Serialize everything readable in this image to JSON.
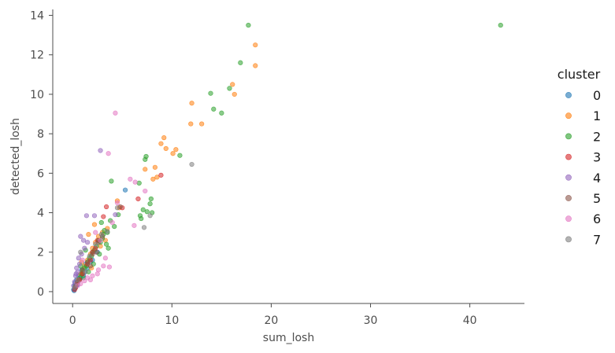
{
  "chart_data": {
    "type": "scatter",
    "xlabel": "sum_losh",
    "ylabel": "detected_losh",
    "xlim": [
      -2,
      45.5
    ],
    "ylim": [
      -0.6,
      14.3
    ],
    "xticks": [
      0,
      10,
      20,
      30,
      40
    ],
    "yticks": [
      0,
      2,
      4,
      6,
      8,
      10,
      12,
      14
    ],
    "grid": false,
    "legend": {
      "title": "cluster",
      "placement": "right"
    },
    "series": [
      {
        "name": "0",
        "color": "#1f77b4",
        "points": [
          [
            0.1,
            0.1
          ],
          [
            0.2,
            0.15
          ],
          [
            0.3,
            0.3
          ],
          [
            0.4,
            0.35
          ],
          [
            0.5,
            0.5
          ],
          [
            0.6,
            0.55
          ],
          [
            0.8,
            0.7
          ],
          [
            1.0,
            0.9
          ],
          [
            1.2,
            1.0
          ],
          [
            0.3,
            0.2
          ],
          [
            0.7,
            0.6
          ],
          [
            0.9,
            1.1
          ],
          [
            1.5,
            1.2
          ],
          [
            2.0,
            1.6
          ],
          [
            0.2,
            0.3
          ],
          [
            0.5,
            0.35
          ],
          [
            1.1,
            0.8
          ],
          [
            1.8,
            1.5
          ],
          [
            0.4,
            0.6
          ],
          [
            5.3,
            5.15
          ],
          [
            0.15,
            0.05
          ],
          [
            0.6,
            0.8
          ],
          [
            1.3,
            1.4
          ],
          [
            2.5,
            2.0
          ],
          [
            0.25,
            0.45
          ]
        ]
      },
      {
        "name": "1",
        "color": "#ff7f0e",
        "points": [
          [
            18.4,
            12.5
          ],
          [
            18.4,
            11.45
          ],
          [
            16.1,
            10.5
          ],
          [
            16.3,
            10.0
          ],
          [
            12.0,
            9.55
          ],
          [
            11.9,
            8.5
          ],
          [
            13.0,
            8.5
          ],
          [
            9.2,
            7.8
          ],
          [
            8.9,
            7.5
          ],
          [
            9.4,
            7.25
          ],
          [
            10.4,
            7.2
          ],
          [
            10.1,
            7.0
          ],
          [
            7.3,
            6.2
          ],
          [
            8.3,
            6.3
          ],
          [
            8.1,
            5.7
          ],
          [
            8.5,
            5.8
          ],
          [
            4.5,
            4.6
          ],
          [
            4.7,
            4.25
          ],
          [
            3.5,
            3.2
          ],
          [
            3.0,
            3.0
          ],
          [
            2.6,
            2.8
          ],
          [
            2.3,
            2.5
          ],
          [
            2.0,
            2.2
          ],
          [
            1.8,
            1.9
          ],
          [
            1.5,
            1.6
          ],
          [
            1.2,
            1.3
          ],
          [
            1.0,
            1.0
          ],
          [
            0.8,
            0.9
          ],
          [
            0.6,
            0.6
          ],
          [
            0.4,
            0.4
          ],
          [
            2.8,
            2.3
          ],
          [
            3.3,
            2.6
          ],
          [
            1.6,
            2.9
          ],
          [
            2.2,
            3.4
          ],
          [
            0.9,
            1.5
          ],
          [
            1.9,
            1.2
          ]
        ]
      },
      {
        "name": "2",
        "color": "#2ca02c",
        "points": [
          [
            43.1,
            13.5
          ],
          [
            17.7,
            13.5
          ],
          [
            16.9,
            11.6
          ],
          [
            13.9,
            10.05
          ],
          [
            14.2,
            9.25
          ],
          [
            15.0,
            9.05
          ],
          [
            15.8,
            10.3
          ],
          [
            10.8,
            6.9
          ],
          [
            7.3,
            6.7
          ],
          [
            7.4,
            6.85
          ],
          [
            3.9,
            5.6
          ],
          [
            7.9,
            4.7
          ],
          [
            7.8,
            4.45
          ],
          [
            7.1,
            4.15
          ],
          [
            7.5,
            4.05
          ],
          [
            8.0,
            4.0
          ],
          [
            6.8,
            3.85
          ],
          [
            6.9,
            3.7
          ],
          [
            4.6,
            3.9
          ],
          [
            3.8,
            3.6
          ],
          [
            3.5,
            3.0
          ],
          [
            3.2,
            3.1
          ],
          [
            3.0,
            2.7
          ],
          [
            2.8,
            2.5
          ],
          [
            2.6,
            2.6
          ],
          [
            2.4,
            2.3
          ],
          [
            2.2,
            2.1
          ],
          [
            2.0,
            2.0
          ],
          [
            1.9,
            1.8
          ],
          [
            1.7,
            1.7
          ],
          [
            1.5,
            1.5
          ],
          [
            1.4,
            1.3
          ],
          [
            1.2,
            1.2
          ],
          [
            1.0,
            1.1
          ],
          [
            0.9,
            0.9
          ],
          [
            0.7,
            0.7
          ],
          [
            0.5,
            0.5
          ],
          [
            0.3,
            0.3
          ],
          [
            3.6,
            2.2
          ],
          [
            3.1,
            2.9
          ],
          [
            2.7,
            1.9
          ],
          [
            1.6,
            1.0
          ],
          [
            1.1,
            0.7
          ],
          [
            0.8,
            1.3
          ],
          [
            2.9,
            3.5
          ],
          [
            4.2,
            3.3
          ],
          [
            6.7,
            5.5
          ],
          [
            3.4,
            2.4
          ],
          [
            2.1,
            1.4
          ],
          [
            1.3,
            2.1
          ]
        ]
      },
      {
        "name": "3",
        "color": "#d62728",
        "points": [
          [
            8.9,
            5.9
          ],
          [
            6.6,
            4.7
          ],
          [
            5.0,
            4.25
          ],
          [
            3.4,
            4.3
          ],
          [
            3.1,
            3.8
          ],
          [
            2.5,
            2.6
          ],
          [
            2.0,
            2.0
          ],
          [
            1.5,
            1.4
          ],
          [
            1.0,
            0.9
          ],
          [
            0.5,
            0.5
          ],
          [
            0.3,
            0.2
          ],
          [
            0.7,
            0.6
          ],
          [
            1.8,
            1.6
          ],
          [
            2.3,
            2.2
          ],
          [
            0.2,
            0.1
          ]
        ]
      },
      {
        "name": "4",
        "color": "#9467bd",
        "points": [
          [
            2.8,
            7.15
          ],
          [
            1.4,
            3.85
          ],
          [
            2.2,
            3.85
          ],
          [
            0.8,
            2.8
          ],
          [
            1.1,
            2.6
          ],
          [
            1.5,
            2.5
          ],
          [
            0.6,
            1.7
          ],
          [
            0.9,
            1.9
          ],
          [
            0.4,
            1.2
          ],
          [
            0.3,
            0.8
          ],
          [
            0.2,
            0.5
          ],
          [
            0.5,
            1.0
          ],
          [
            1.2,
            2.2
          ],
          [
            0.7,
            1.4
          ],
          [
            0.1,
            0.3
          ],
          [
            0.35,
            0.9
          ],
          [
            4.3,
            3.9
          ]
        ]
      },
      {
        "name": "5",
        "color": "#8c564b",
        "points": [
          [
            2.6,
            2.5
          ],
          [
            2.0,
            1.9
          ],
          [
            1.5,
            1.5
          ],
          [
            1.0,
            1.1
          ],
          [
            0.5,
            0.5
          ],
          [
            3.0,
            2.8
          ],
          [
            0.3,
            0.25
          ],
          [
            1.8,
            1.3
          ],
          [
            2.4,
            2.0
          ],
          [
            4.8,
            4.3
          ]
        ]
      },
      {
        "name": "6",
        "color": "#e377c2",
        "points": [
          [
            4.3,
            9.05
          ],
          [
            3.6,
            7.0
          ],
          [
            7.3,
            5.1
          ],
          [
            5.8,
            5.7
          ],
          [
            6.3,
            5.55
          ],
          [
            6.2,
            3.35
          ],
          [
            4.5,
            4.5
          ],
          [
            3.7,
            1.25
          ],
          [
            3.1,
            1.3
          ],
          [
            2.5,
            0.9
          ],
          [
            2.0,
            0.8
          ],
          [
            1.5,
            0.7
          ],
          [
            1.2,
            0.55
          ],
          [
            0.8,
            0.4
          ],
          [
            0.5,
            0.3
          ],
          [
            2.8,
            2.6
          ],
          [
            2.3,
            3.0
          ],
          [
            1.0,
            1.6
          ],
          [
            3.3,
            1.7
          ],
          [
            2.6,
            1.1
          ],
          [
            1.8,
            0.6
          ],
          [
            4.0,
            3.5
          ]
        ]
      },
      {
        "name": "7",
        "color": "#7f7f7f",
        "points": [
          [
            12.0,
            6.45
          ],
          [
            7.2,
            3.25
          ],
          [
            7.8,
            3.85
          ],
          [
            4.5,
            4.25
          ],
          [
            2.9,
            2.9
          ],
          [
            0.8,
            2.0
          ],
          [
            1.3,
            1.0
          ],
          [
            0.5,
            0.6
          ],
          [
            0.2,
            0.2
          ],
          [
            1.7,
            1.8
          ],
          [
            2.3,
            2.4
          ],
          [
            3.5,
            3.05
          ]
        ]
      }
    ]
  }
}
